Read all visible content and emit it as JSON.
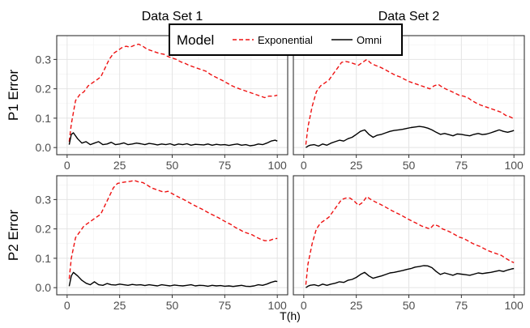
{
  "chart_data": {
    "type": "line",
    "facet_columns": [
      "Data Set 1",
      "Data Set 2"
    ],
    "facet_rows": [
      "P1 Error",
      "P2 Error"
    ],
    "xlabel": "T(h)",
    "xlim": [
      0,
      100
    ],
    "ylim": [
      0,
      0.37
    ],
    "x_ticks": [
      0,
      25,
      50,
      75,
      100
    ],
    "x_tick_labels": [
      "0",
      "25",
      "50",
      "75",
      "100"
    ],
    "y_ticks": [
      0.0,
      0.1,
      0.2,
      0.3
    ],
    "y_tick_labels": [
      "0.0",
      "0.1",
      "0.2",
      "0.3"
    ],
    "grid": true,
    "legend": {
      "title": "Model",
      "placement": "top-center",
      "entries": [
        {
          "label": "Exponential",
          "color": "#ee1111",
          "dash": "dashed"
        },
        {
          "label": "Omni",
          "color": "#000000",
          "dash": "solid"
        }
      ]
    },
    "panels": [
      {
        "row": "P1 Error",
        "column": "Data Set 1",
        "series": [
          {
            "name": "Exponential",
            "x": [
              1,
              2,
              4,
              6,
              8,
              10,
              12,
              14,
              16,
              18,
              20,
              22,
              24,
              26,
              28,
              30,
              32,
              34,
              36,
              38,
              40,
              42,
              44,
              46,
              48,
              50,
              52,
              54,
              56,
              58,
              60,
              62,
              64,
              66,
              68,
              70,
              72,
              74,
              76,
              78,
              80,
              82,
              84,
              86,
              88,
              90,
              92,
              94,
              96,
              98,
              100
            ],
            "y": [
              0.02,
              0.08,
              0.16,
              0.18,
              0.19,
              0.21,
              0.22,
              0.23,
              0.24,
              0.27,
              0.3,
              0.32,
              0.33,
              0.34,
              0.345,
              0.342,
              0.348,
              0.352,
              0.345,
              0.335,
              0.33,
              0.325,
              0.32,
              0.318,
              0.31,
              0.305,
              0.3,
              0.292,
              0.287,
              0.28,
              0.275,
              0.27,
              0.265,
              0.26,
              0.25,
              0.242,
              0.235,
              0.228,
              0.22,
              0.212,
              0.205,
              0.2,
              0.195,
              0.19,
              0.185,
              0.18,
              0.175,
              0.17,
              0.175,
              0.175,
              0.178
            ]
          },
          {
            "name": "Omni",
            "x": [
              1,
              2,
              3,
              5,
              7,
              9,
              11,
              13,
              15,
              17,
              19,
              21,
              23,
              25,
              27,
              29,
              31,
              33,
              35,
              37,
              39,
              41,
              43,
              45,
              47,
              49,
              51,
              53,
              55,
              57,
              59,
              61,
              63,
              65,
              67,
              69,
              71,
              73,
              75,
              77,
              79,
              81,
              83,
              85,
              87,
              89,
              91,
              93,
              95,
              97,
              99,
              100
            ],
            "y": [
              0.01,
              0.045,
              0.05,
              0.03,
              0.015,
              0.02,
              0.01,
              0.015,
              0.02,
              0.01,
              0.012,
              0.018,
              0.01,
              0.012,
              0.016,
              0.01,
              0.012,
              0.015,
              0.013,
              0.01,
              0.014,
              0.012,
              0.009,
              0.012,
              0.01,
              0.013,
              0.008,
              0.012,
              0.01,
              0.013,
              0.008,
              0.011,
              0.01,
              0.009,
              0.012,
              0.008,
              0.011,
              0.009,
              0.01,
              0.007,
              0.01,
              0.012,
              0.008,
              0.01,
              0.006,
              0.008,
              0.012,
              0.01,
              0.015,
              0.022,
              0.025,
              0.022
            ]
          }
        ]
      },
      {
        "row": "P1 Error",
        "column": "Data Set 2",
        "series": [
          {
            "name": "Exponential",
            "x": [
              1,
              2,
              4,
              6,
              8,
              10,
              12,
              14,
              16,
              18,
              20,
              22,
              24,
              26,
              28,
              30,
              32,
              34,
              36,
              38,
              40,
              42,
              44,
              46,
              48,
              50,
              52,
              54,
              56,
              58,
              60,
              62,
              64,
              66,
              68,
              70,
              72,
              74,
              76,
              78,
              80,
              82,
              84,
              86,
              88,
              90,
              92,
              94,
              96,
              98,
              100
            ],
            "y": [
              0.01,
              0.07,
              0.14,
              0.19,
              0.21,
              0.22,
              0.23,
              0.25,
              0.27,
              0.29,
              0.293,
              0.29,
              0.285,
              0.28,
              0.29,
              0.3,
              0.287,
              0.28,
              0.275,
              0.268,
              0.26,
              0.252,
              0.245,
              0.24,
              0.232,
              0.225,
              0.22,
              0.215,
              0.21,
              0.205,
              0.2,
              0.21,
              0.215,
              0.205,
              0.198,
              0.192,
              0.185,
              0.178,
              0.175,
              0.17,
              0.16,
              0.152,
              0.145,
              0.14,
              0.135,
              0.13,
              0.125,
              0.12,
              0.11,
              0.105,
              0.098
            ]
          },
          {
            "name": "Omni",
            "x": [
              1,
              2,
              3,
              5,
              7,
              9,
              11,
              13,
              15,
              17,
              19,
              21,
              23,
              25,
              27,
              29,
              31,
              33,
              35,
              37,
              39,
              41,
              43,
              45,
              47,
              49,
              51,
              53,
              55,
              57,
              59,
              61,
              63,
              65,
              67,
              69,
              71,
              73,
              75,
              77,
              79,
              81,
              83,
              85,
              87,
              89,
              91,
              93,
              95,
              97,
              99,
              100
            ],
            "y": [
              0.0,
              0.005,
              0.008,
              0.01,
              0.005,
              0.012,
              0.008,
              0.015,
              0.02,
              0.025,
              0.022,
              0.03,
              0.035,
              0.045,
              0.055,
              0.06,
              0.045,
              0.035,
              0.042,
              0.045,
              0.05,
              0.055,
              0.058,
              0.06,
              0.062,
              0.065,
              0.068,
              0.07,
              0.072,
              0.07,
              0.066,
              0.06,
              0.052,
              0.045,
              0.048,
              0.044,
              0.04,
              0.046,
              0.045,
              0.042,
              0.04,
              0.045,
              0.048,
              0.044,
              0.046,
              0.05,
              0.055,
              0.06,
              0.055,
              0.052,
              0.056,
              0.058
            ]
          }
        ]
      },
      {
        "row": "P2 Error",
        "column": "Data Set 1",
        "series": [
          {
            "name": "Exponential",
            "x": [
              1,
              2,
              4,
              6,
              8,
              10,
              12,
              14,
              16,
              18,
              20,
              22,
              24,
              26,
              28,
              30,
              32,
              34,
              36,
              38,
              40,
              42,
              44,
              46,
              48,
              50,
              52,
              54,
              56,
              58,
              60,
              62,
              64,
              66,
              68,
              70,
              72,
              74,
              76,
              78,
              80,
              82,
              84,
              86,
              88,
              90,
              92,
              94,
              96,
              98,
              100
            ],
            "y": [
              0.03,
              0.1,
              0.17,
              0.19,
              0.21,
              0.22,
              0.23,
              0.24,
              0.25,
              0.28,
              0.31,
              0.34,
              0.355,
              0.358,
              0.36,
              0.362,
              0.365,
              0.36,
              0.358,
              0.35,
              0.34,
              0.335,
              0.33,
              0.325,
              0.328,
              0.32,
              0.312,
              0.305,
              0.298,
              0.29,
              0.282,
              0.275,
              0.268,
              0.26,
              0.252,
              0.245,
              0.238,
              0.23,
              0.222,
              0.215,
              0.205,
              0.198,
              0.19,
              0.185,
              0.18,
              0.172,
              0.165,
              0.16,
              0.16,
              0.165,
              0.168
            ]
          },
          {
            "name": "Omni",
            "x": [
              1,
              2,
              3,
              5,
              7,
              9,
              11,
              13,
              15,
              17,
              19,
              21,
              23,
              25,
              27,
              29,
              31,
              33,
              35,
              37,
              39,
              41,
              43,
              45,
              47,
              49,
              51,
              53,
              55,
              57,
              59,
              61,
              63,
              65,
              67,
              69,
              71,
              73,
              75,
              77,
              79,
              81,
              83,
              85,
              87,
              89,
              91,
              93,
              95,
              97,
              99,
              100
            ],
            "y": [
              0.005,
              0.04,
              0.052,
              0.04,
              0.025,
              0.015,
              0.01,
              0.02,
              0.01,
              0.008,
              0.014,
              0.01,
              0.009,
              0.012,
              0.01,
              0.008,
              0.011,
              0.009,
              0.01,
              0.007,
              0.01,
              0.008,
              0.006,
              0.01,
              0.008,
              0.006,
              0.009,
              0.007,
              0.006,
              0.008,
              0.01,
              0.006,
              0.008,
              0.007,
              0.005,
              0.008,
              0.006,
              0.007,
              0.005,
              0.006,
              0.004,
              0.006,
              0.008,
              0.005,
              0.004,
              0.006,
              0.01,
              0.008,
              0.012,
              0.018,
              0.022,
              0.021
            ]
          }
        ]
      },
      {
        "row": "P2 Error",
        "column": "Data Set 2",
        "series": [
          {
            "name": "Exponential",
            "x": [
              1,
              2,
              4,
              6,
              8,
              10,
              12,
              14,
              16,
              18,
              20,
              22,
              24,
              26,
              28,
              30,
              32,
              34,
              36,
              38,
              40,
              42,
              44,
              46,
              48,
              50,
              52,
              54,
              56,
              58,
              60,
              62,
              64,
              66,
              68,
              70,
              72,
              74,
              76,
              78,
              80,
              82,
              84,
              86,
              88,
              90,
              92,
              94,
              96,
              98,
              100
            ],
            "y": [
              0.01,
              0.08,
              0.15,
              0.2,
              0.22,
              0.23,
              0.24,
              0.26,
              0.28,
              0.3,
              0.305,
              0.305,
              0.295,
              0.28,
              0.29,
              0.31,
              0.3,
              0.292,
              0.285,
              0.278,
              0.27,
              0.262,
              0.255,
              0.248,
              0.24,
              0.232,
              0.225,
              0.218,
              0.21,
              0.205,
              0.2,
              0.215,
              0.21,
              0.2,
              0.195,
              0.188,
              0.18,
              0.172,
              0.168,
              0.16,
              0.152,
              0.145,
              0.14,
              0.132,
              0.125,
              0.12,
              0.115,
              0.11,
              0.1,
              0.092,
              0.085
            ]
          },
          {
            "name": "Omni",
            "x": [
              1,
              2,
              3,
              5,
              7,
              9,
              11,
              13,
              15,
              17,
              19,
              21,
              23,
              25,
              27,
              29,
              31,
              33,
              35,
              37,
              39,
              41,
              43,
              45,
              47,
              49,
              51,
              53,
              55,
              57,
              59,
              61,
              63,
              65,
              67,
              69,
              71,
              73,
              75,
              77,
              79,
              81,
              83,
              85,
              87,
              89,
              91,
              93,
              95,
              97,
              99,
              100
            ],
            "y": [
              0.0,
              0.005,
              0.008,
              0.01,
              0.006,
              0.012,
              0.008,
              0.012,
              0.015,
              0.02,
              0.018,
              0.025,
              0.028,
              0.035,
              0.045,
              0.052,
              0.04,
              0.032,
              0.036,
              0.04,
              0.045,
              0.05,
              0.052,
              0.055,
              0.058,
              0.062,
              0.065,
              0.07,
              0.072,
              0.075,
              0.074,
              0.068,
              0.055,
              0.045,
              0.05,
              0.046,
              0.042,
              0.048,
              0.046,
              0.044,
              0.042,
              0.046,
              0.05,
              0.048,
              0.05,
              0.052,
              0.055,
              0.058,
              0.055,
              0.06,
              0.064,
              0.065
            ]
          }
        ]
      }
    ]
  }
}
